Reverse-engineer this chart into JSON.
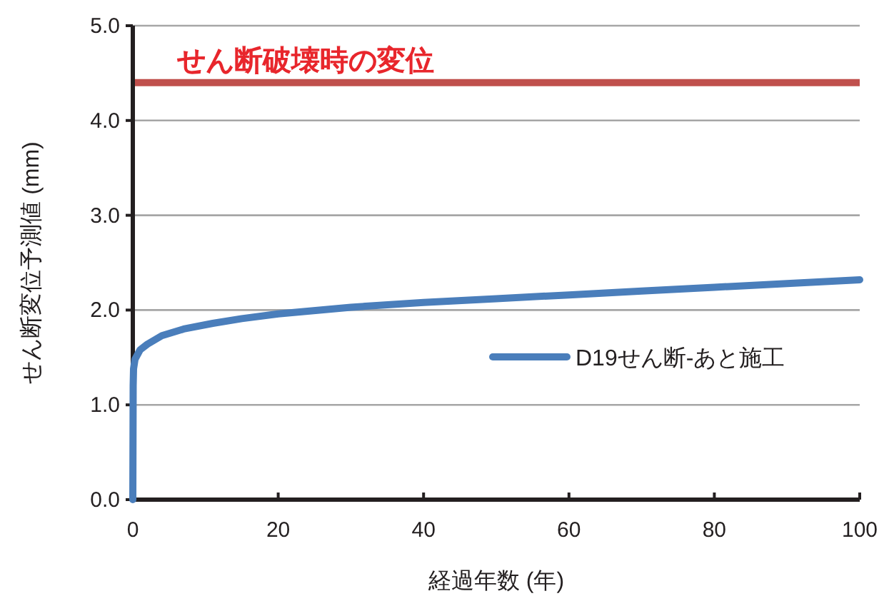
{
  "chart_data": {
    "type": "line",
    "xlabel": "経過年数 (年)",
    "ylabel": "せん断変位予測値 (mm)",
    "xlim": [
      0,
      100
    ],
    "xticks": [
      0,
      20,
      40,
      60,
      80,
      100
    ],
    "ylim": [
      0,
      5
    ],
    "yticks": [
      {
        "value": 0,
        "label": "0.0"
      },
      {
        "value": 1,
        "label": "1.0"
      },
      {
        "value": 2,
        "label": "2.0"
      },
      {
        "value": 3,
        "label": "3.0"
      },
      {
        "value": 4,
        "label": "4.0"
      },
      {
        "value": 5,
        "label": "5.0"
      }
    ],
    "grid": "y",
    "legend": "right",
    "marker": "none",
    "line_style": "solid",
    "ref_lines": [
      {
        "axis": "y",
        "value": 4.4,
        "label": "せん断破壊時の変位",
        "color": "#c0504d"
      }
    ],
    "series": [
      {
        "name": "D19せん断-あと施工",
        "color": "#4a7ebb",
        "x": [
          0,
          0.05,
          0.1,
          0.3,
          1,
          2,
          4,
          7,
          11,
          15,
          20,
          30,
          40,
          50,
          60,
          70,
          80,
          90,
          100
        ],
        "values": [
          0,
          1.2,
          1.38,
          1.48,
          1.58,
          1.64,
          1.73,
          1.8,
          1.86,
          1.91,
          1.96,
          2.03,
          2.08,
          2.12,
          2.16,
          2.2,
          2.24,
          2.28,
          2.32
        ]
      }
    ]
  }
}
